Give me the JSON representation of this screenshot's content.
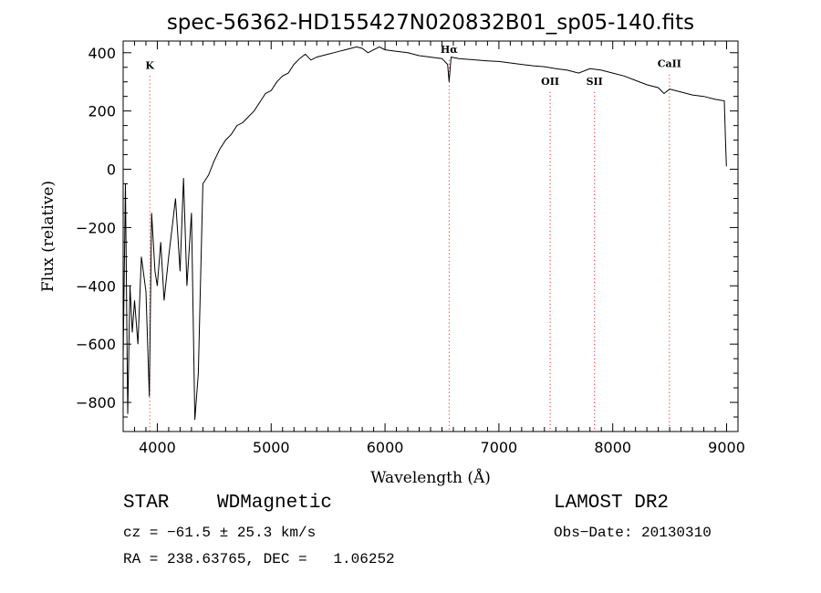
{
  "chart_data": {
    "type": "line",
    "title": "spec-56362-HD155427N020832B01_sp05-140.fits",
    "xlabel": "Wavelength (Å)",
    "ylabel": "Flux (relative)",
    "xlim": [
      3700,
      9100
    ],
    "ylim": [
      -900,
      440
    ],
    "x_ticks": [
      "4000",
      "5000",
      "6000",
      "7000",
      "8000",
      "9000"
    ],
    "y_ticks": [
      "400",
      "200",
      "0",
      "−200",
      "−400",
      "−600",
      "−800"
    ],
    "x_tick_values": [
      4000,
      5000,
      6000,
      7000,
      8000,
      9000
    ],
    "y_tick_values": [
      400,
      200,
      0,
      -200,
      -400,
      -600,
      -800
    ],
    "grid": false,
    "series": [
      {
        "x": [
          3700,
          3720,
          3740,
          3760,
          3780,
          3800,
          3830,
          3860,
          3900,
          3930,
          3950,
          3980,
          4000,
          4030,
          4060,
          4100,
          4130,
          4160,
          4200,
          4230,
          4260,
          4300,
          4330,
          4360,
          4400,
          4450,
          4500,
          4550,
          4600,
          4650,
          4700,
          4750,
          4800,
          4850,
          4900,
          4950,
          5000,
          5050,
          5100,
          5150,
          5200,
          5250,
          5300,
          5350,
          5400,
          5450,
          5500,
          5550,
          5600,
          5650,
          5700,
          5750,
          5800,
          5850,
          5900,
          5950,
          6000,
          6100,
          6200,
          6300,
          6400,
          6500,
          6550,
          6563,
          6580,
          6650,
          6700,
          6800,
          6900,
          7000,
          7100,
          7200,
          7300,
          7400,
          7500,
          7600,
          7700,
          7800,
          7900,
          8000,
          8100,
          8200,
          8300,
          8400,
          8450,
          8500,
          8600,
          8700,
          8800,
          8900,
          8980,
          8990,
          8998
        ],
        "y": [
          -650,
          -50,
          -840,
          -400,
          -560,
          -450,
          -600,
          -300,
          -420,
          -780,
          -150,
          -350,
          -400,
          -250,
          -450,
          -300,
          -200,
          -100,
          -350,
          -30,
          -400,
          -150,
          -860,
          -700,
          -50,
          -20,
          30,
          70,
          100,
          120,
          150,
          160,
          180,
          200,
          230,
          260,
          270,
          300,
          320,
          330,
          360,
          380,
          395,
          375,
          385,
          390,
          395,
          400,
          405,
          410,
          415,
          420,
          415,
          400,
          410,
          420,
          410,
          405,
          400,
          390,
          385,
          380,
          360,
          300,
          385,
          380,
          378,
          375,
          372,
          370,
          365,
          360,
          355,
          352,
          345,
          340,
          330,
          345,
          340,
          330,
          320,
          305,
          290,
          280,
          260,
          275,
          265,
          255,
          250,
          240,
          235,
          100,
          10
        ]
      }
    ],
    "annotations": [
      {
        "label": "K",
        "x": 3934,
        "label_y": 345
      },
      {
        "label": "Hα",
        "x": 6563,
        "label_y": 400
      },
      {
        "label": "OII",
        "x": 7450,
        "label_y": 290
      },
      {
        "label": "SII",
        "x": 7840,
        "label_y": 290
      },
      {
        "label": "CaII",
        "x": 8498,
        "label_y": 350
      }
    ]
  },
  "info": {
    "object_type": "STAR",
    "subclass": "WDMagnetic",
    "survey": "LAMOST DR2",
    "cz": "cz = −61.5 ± 25.3 km/s",
    "obs_date": "Obs−Date: 20130310",
    "coords": "RA = 238.63765, DEC =   1.06252"
  },
  "colors": {
    "annotation_line": "#ff0000",
    "spectrum": "#000000",
    "axes": "#000000"
  }
}
